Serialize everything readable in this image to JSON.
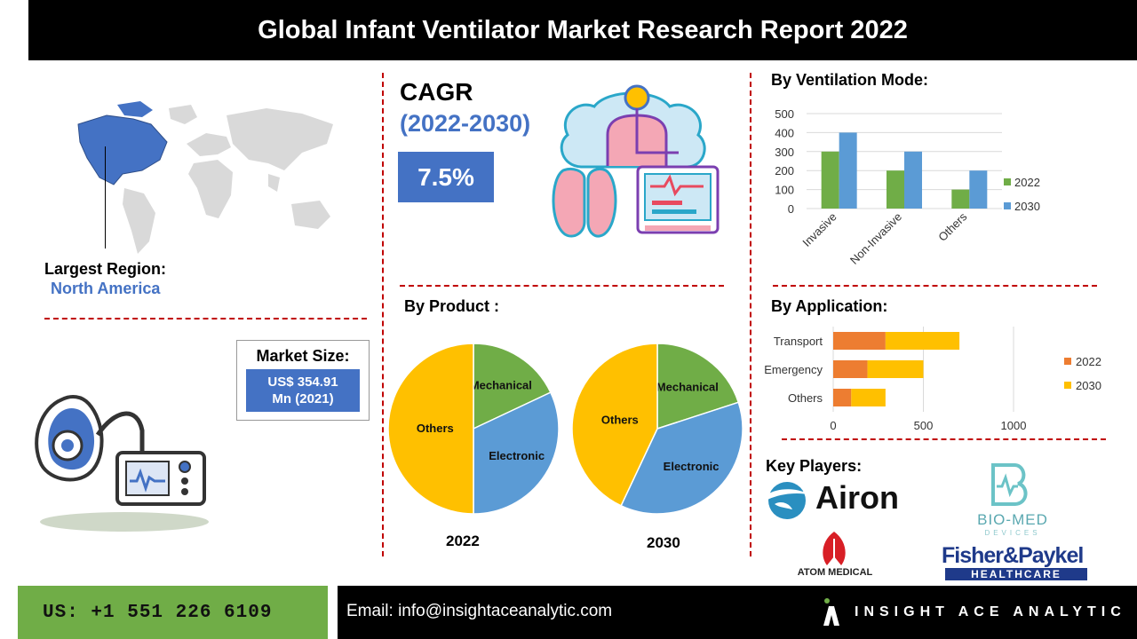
{
  "header": {
    "title": "Global Infant Ventilator Market Research Report 2022"
  },
  "region": {
    "label": "Largest Region:",
    "value": "North America"
  },
  "cagr": {
    "label": "CAGR",
    "years": "(2022-2030)",
    "value": "7.5%"
  },
  "market_size": {
    "label": "Market Size:",
    "value_line1": "US$ 354.91",
    "value_line2": "Mn (2021)"
  },
  "ventilation_mode": {
    "heading": "By Ventilation Mode:"
  },
  "product": {
    "heading": "By Product :"
  },
  "application": {
    "heading": "By Application:"
  },
  "key_players": {
    "heading": "Key Players:",
    "names": [
      "Airon",
      "BIO-MED",
      "DEVICES",
      "ATOM MEDICAL",
      "Fisher&Paykel",
      "HEALTHCARE"
    ]
  },
  "footer": {
    "phone": "US: +1 551 226 6109",
    "email": "Email: info@insightaceanalytic.com",
    "brand": "INSIGHT ACE ANALYTIC"
  },
  "colors": {
    "blue": "#4472c4",
    "green": "#70ad47",
    "orange": "#ed7d31",
    "gold": "#ffc000",
    "light_blue": "#5b9bd5",
    "dash_red": "#c00000"
  },
  "chart_data": [
    {
      "type": "bar",
      "categories": [
        "Invasive",
        "Non-Invasive",
        "Others"
      ],
      "series": [
        {
          "name": "2022",
          "values": [
            300,
            200,
            100
          ]
        },
        {
          "name": "2030",
          "values": [
            400,
            300,
            200
          ]
        }
      ],
      "yticks": [
        "0",
        "100",
        "200",
        "300",
        "400",
        "500"
      ],
      "ylim": [
        0,
        500
      ],
      "grid": true,
      "legend": "right"
    },
    {
      "type": "pie",
      "label": "2022",
      "slices": [
        {
          "name": "Mechanical",
          "value": 18
        },
        {
          "name": "Electronic",
          "value": 32
        },
        {
          "name": "Others",
          "value": 50
        }
      ]
    },
    {
      "type": "pie",
      "label": "2030",
      "slices": [
        {
          "name": "Mechanical",
          "value": 20
        },
        {
          "name": "Electronic",
          "value": 37
        },
        {
          "name": "Others",
          "value": 43
        }
      ]
    },
    {
      "type": "bar",
      "orientation": "horizontal",
      "stacked": true,
      "categories": [
        "Transport",
        "Emergency",
        "Others"
      ],
      "series": [
        {
          "name": "2022",
          "values": [
            290,
            190,
            100
          ]
        },
        {
          "name": "2030",
          "values": [
            410,
            310,
            190
          ]
        }
      ],
      "xticks": [
        "0",
        "500",
        "1000"
      ],
      "xlim": [
        0,
        1000
      ],
      "grid": true,
      "legend": "right"
    }
  ]
}
